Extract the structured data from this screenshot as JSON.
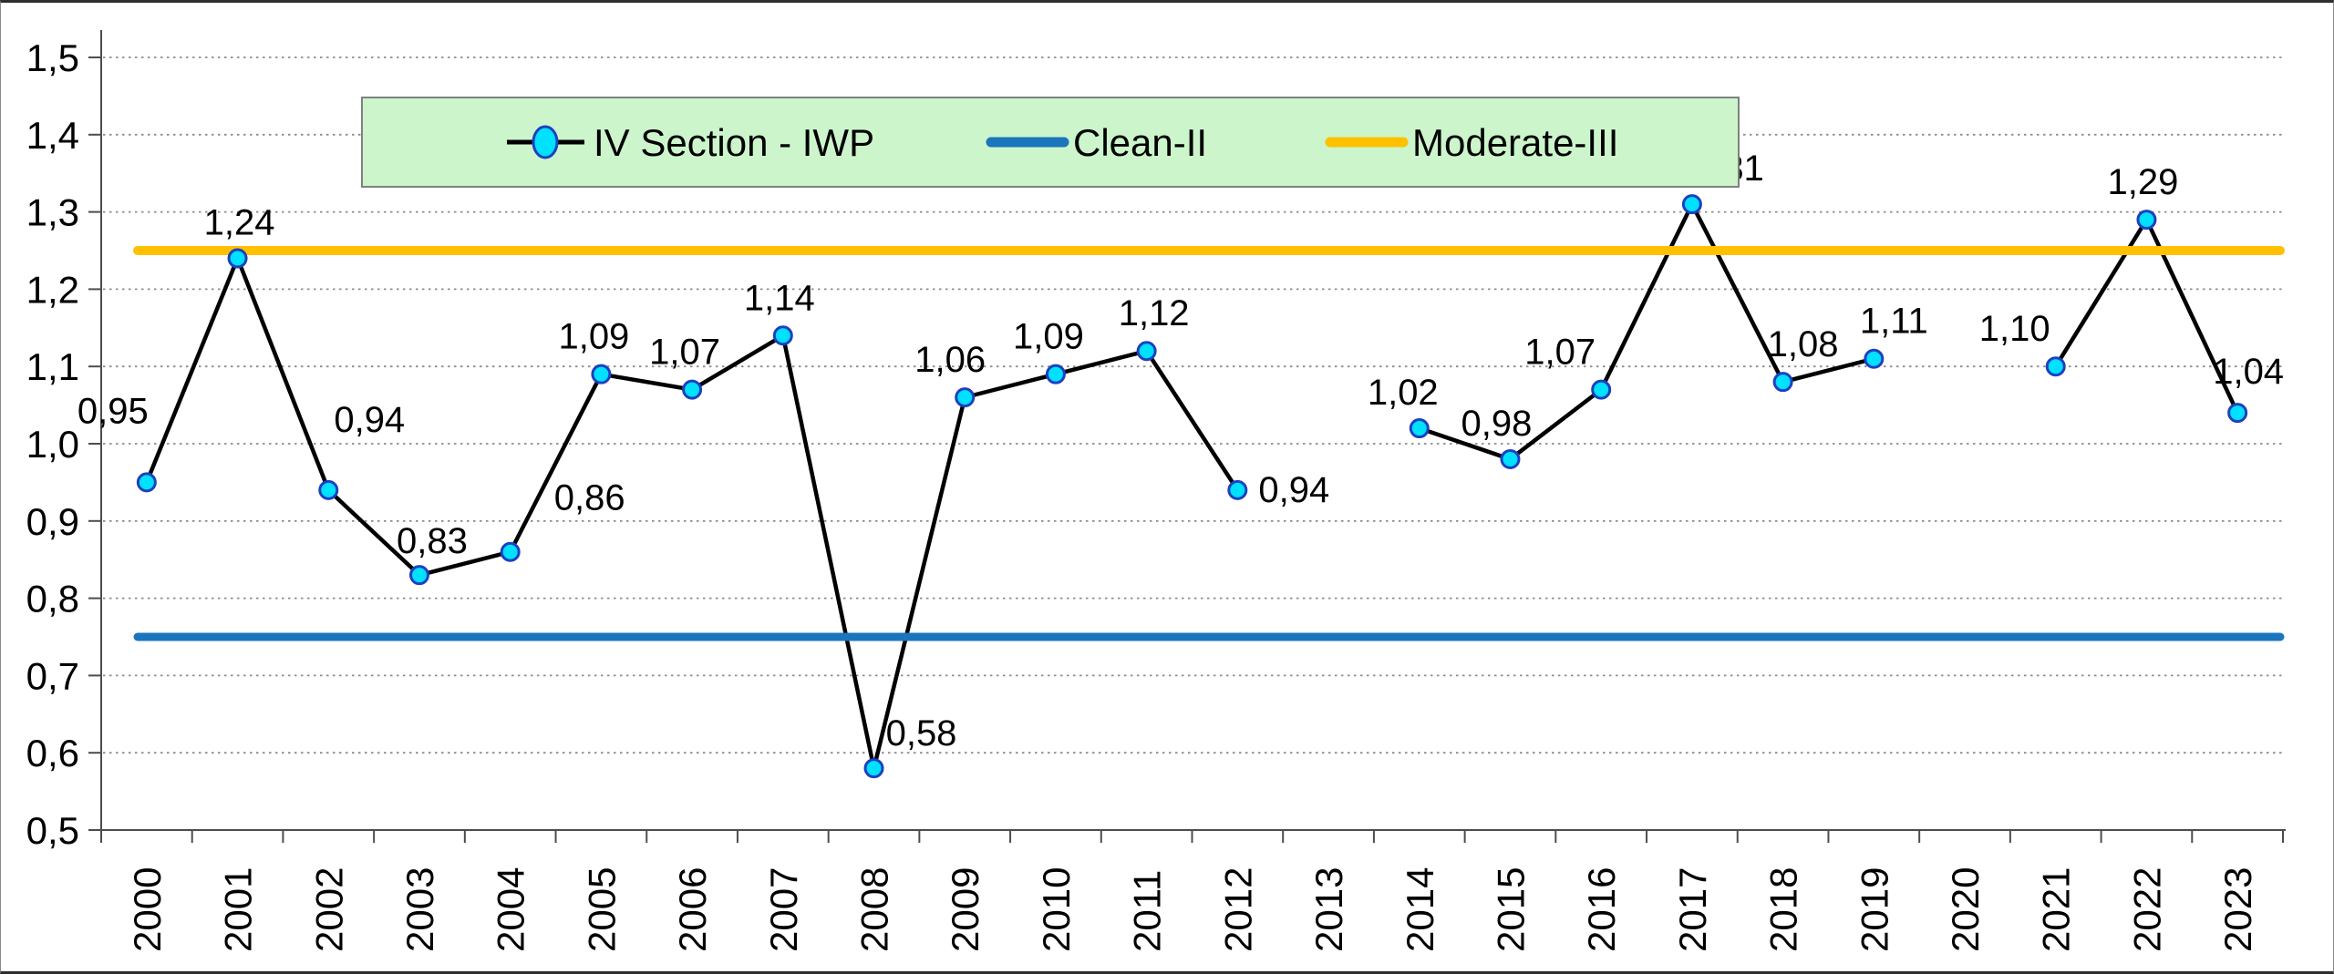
{
  "chart_data": {
    "type": "line",
    "title": "",
    "decimal_separator": ",",
    "categories": [
      "2000",
      "2001",
      "2002",
      "2003",
      "2004",
      "2005",
      "2006",
      "2007",
      "2008",
      "2009",
      "2010",
      "2011",
      "2012",
      "2013",
      "2014",
      "2015",
      "2016",
      "2017",
      "2018",
      "2019",
      "2020",
      "2021",
      "2022",
      "2023"
    ],
    "series": [
      {
        "name": "IV Section - IWP",
        "type": "line-with-markers",
        "values": [
          0.95,
          1.24,
          0.94,
          0.83,
          0.86,
          1.09,
          1.07,
          1.14,
          0.58,
          1.06,
          1.09,
          1.12,
          0.94,
          null,
          1.02,
          0.98,
          1.07,
          1.31,
          1.08,
          1.11,
          null,
          1.1,
          1.29,
          1.04
        ],
        "labels": [
          "0,95",
          "1,24",
          "0,94",
          "0,83",
          "0,86",
          "1,09",
          "1,07",
          "1,14",
          "0,58",
          "1,06",
          "1,09",
          "1,12",
          "0,94",
          null,
          "1,02",
          "0,98",
          "1,07",
          "1,31",
          "1,08",
          "1,11",
          null,
          "1,10",
          "1,29",
          "1,04"
        ],
        "line_color": "#000000",
        "marker_fill": "#00E0FF",
        "marker_stroke": "#1E40C0"
      },
      {
        "name": "Clean-II",
        "type": "refline",
        "value": 0.75,
        "color": "#1B75BC"
      },
      {
        "name": "Moderate-III",
        "type": "refline",
        "value": 1.25,
        "color": "#FFC000"
      }
    ],
    "ylim": [
      0.5,
      1.5
    ],
    "ytick_step": 0.1,
    "ytick_labels": [
      "0,5",
      "0,6",
      "0,7",
      "0,8",
      "0,9",
      "1,0",
      "1,1",
      "1,2",
      "1,3",
      "1,4",
      "1,5"
    ],
    "grid": "horizontal-dotted",
    "legend": {
      "position": "top-center",
      "bg_color": "#CCF5CC",
      "border_color": "#808080",
      "entries": [
        "IV Section - IWP",
        "Clean-II",
        "Moderate-III"
      ]
    }
  }
}
